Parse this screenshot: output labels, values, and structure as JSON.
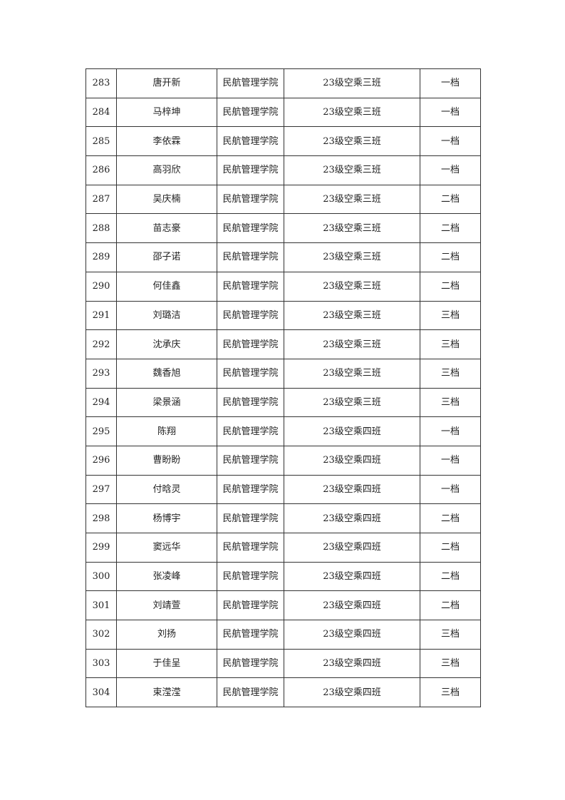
{
  "rows": [
    {
      "no": "283",
      "name": "唐开新",
      "college": "民航管理学院",
      "class": "23级空乘三班",
      "level": "一档"
    },
    {
      "no": "284",
      "name": "马梓坤",
      "college": "民航管理学院",
      "class": "23级空乘三班",
      "level": "一档"
    },
    {
      "no": "285",
      "name": "李依霖",
      "college": "民航管理学院",
      "class": "23级空乘三班",
      "level": "一档"
    },
    {
      "no": "286",
      "name": "高羽欣",
      "college": "民航管理学院",
      "class": "23级空乘三班",
      "level": "一档"
    },
    {
      "no": "287",
      "name": "吴庆楠",
      "college": "民航管理学院",
      "class": "23级空乘三班",
      "level": "二档"
    },
    {
      "no": "288",
      "name": "苗志豪",
      "college": "民航管理学院",
      "class": "23级空乘三班",
      "level": "二档"
    },
    {
      "no": "289",
      "name": "邵子诺",
      "college": "民航管理学院",
      "class": "23级空乘三班",
      "level": "二档"
    },
    {
      "no": "290",
      "name": "何佳鑫",
      "college": "民航管理学院",
      "class": "23级空乘三班",
      "level": "二档"
    },
    {
      "no": "291",
      "name": "刘璐洁",
      "college": "民航管理学院",
      "class": "23级空乘三班",
      "level": "三档"
    },
    {
      "no": "292",
      "name": "沈承庆",
      "college": "民航管理学院",
      "class": "23级空乘三班",
      "level": "三档"
    },
    {
      "no": "293",
      "name": "魏香旭",
      "college": "民航管理学院",
      "class": "23级空乘三班",
      "level": "三档"
    },
    {
      "no": "294",
      "name": "梁景涵",
      "college": "民航管理学院",
      "class": "23级空乘三班",
      "level": "三档"
    },
    {
      "no": "295",
      "name": "陈翔",
      "college": "民航管理学院",
      "class": "23级空乘四班",
      "level": "一档"
    },
    {
      "no": "296",
      "name": "曹盼盼",
      "college": "民航管理学院",
      "class": "23级空乘四班",
      "level": "一档"
    },
    {
      "no": "297",
      "name": "付晗灵",
      "college": "民航管理学院",
      "class": "23级空乘四班",
      "level": "一档"
    },
    {
      "no": "298",
      "name": "杨博宇",
      "college": "民航管理学院",
      "class": "23级空乘四班",
      "level": "二档"
    },
    {
      "no": "299",
      "name": "窦远华",
      "college": "民航管理学院",
      "class": "23级空乘四班",
      "level": "二档"
    },
    {
      "no": "300",
      "name": "张凌峰",
      "college": "民航管理学院",
      "class": "23级空乘四班",
      "level": "二档"
    },
    {
      "no": "301",
      "name": "刘靖萱",
      "college": "民航管理学院",
      "class": "23级空乘四班",
      "level": "二档"
    },
    {
      "no": "302",
      "name": "刘扬",
      "college": "民航管理学院",
      "class": "23级空乘四班",
      "level": "三档"
    },
    {
      "no": "303",
      "name": "于佳呈",
      "college": "民航管理学院",
      "class": "23级空乘四班",
      "level": "三档"
    },
    {
      "no": "304",
      "name": "束滢滢",
      "college": "民航管理学院",
      "class": "23级空乘四班",
      "level": "三档"
    }
  ]
}
